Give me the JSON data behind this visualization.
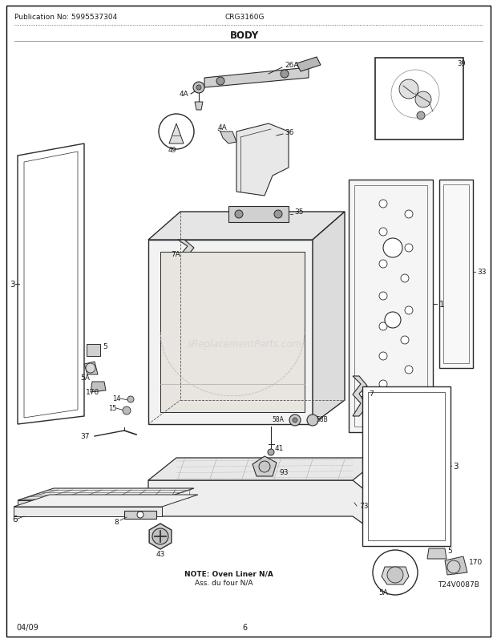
{
  "title": "BODY",
  "pub_no": "Publication No: 5995537304",
  "model": "CRG3160G",
  "date": "04/09",
  "page": "6",
  "diagram_id": "T24V0087B",
  "note_line1": "NOTE: Oven Liner N/A",
  "note_line2": "Ass. du four N/A",
  "watermark": "sReplacementParts.com",
  "bg_color": "#ffffff",
  "figsize": [
    6.2,
    8.03
  ],
  "dpi": 100
}
